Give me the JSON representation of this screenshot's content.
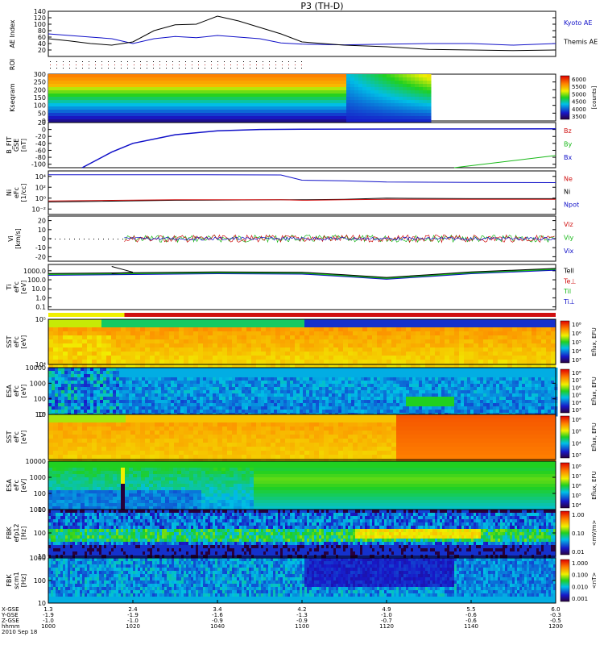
{
  "title": "P3 (TH-D)",
  "colors": {
    "blue": "#1010c8",
    "black": "#000000",
    "red": "#d01010",
    "green": "#18b818",
    "yellow": "#f0f000"
  },
  "panels": [
    {
      "key": "ae",
      "ylabel": [
        "AE Index"
      ],
      "ticks": [
        "140",
        "120",
        "100",
        "80",
        "60",
        "40",
        "20"
      ],
      "legend": [
        {
          "text": "Kyoto AE",
          "color": "blue"
        },
        {
          "text": "Themis AE",
          "color": "black"
        }
      ],
      "chart_data": {
        "type": "line",
        "ylim": [
          0,
          140
        ],
        "x": [
          1000,
          1005,
          1010,
          1015,
          1020,
          1025,
          1030,
          1035,
          1040,
          1045,
          1050,
          1055,
          1100,
          1110,
          1120,
          1130,
          1140,
          1150,
          1200
        ],
        "series": [
          {
            "name": "Kyoto AE",
            "values": [
              70,
              65,
              60,
              55,
              40,
              55,
              62,
              58,
              65,
              60,
              55,
              42,
              38,
              36,
              38,
              40,
              40,
              35,
              40
            ]
          },
          {
            "name": "Themis AE",
            "values": [
              55,
              48,
              40,
              35,
              45,
              80,
              98,
              100,
              125,
              110,
              90,
              70,
              45,
              35,
              30,
              22,
              20,
              18,
              20
            ]
          }
        ]
      }
    },
    {
      "key": "roi",
      "ylabel": [
        "ROI"
      ],
      "ticks": [],
      "legend": [],
      "chart_data": {
        "type": "scatter",
        "rows": 3,
        "x_end": 1100
      }
    },
    {
      "key": "kp",
      "ylabel": [
        "Kseqram"
      ],
      "ticks": [
        "300",
        "250",
        "200",
        "150",
        "100",
        "50",
        "0"
      ],
      "legend": [],
      "colorbar": {
        "labels": [
          "6000",
          "5500",
          "5000",
          "4500",
          "4000",
          "3500"
        ],
        "title": "[counts]"
      },
      "chart_data": {
        "type": "heatmap",
        "ylim": [
          0,
          300
        ],
        "zlim": [
          3500,
          6000
        ]
      }
    },
    {
      "key": "bfit",
      "ylabel": [
        "B_FIT",
        "GSE",
        "[nT]"
      ],
      "ticks": [
        "20",
        "0",
        "-20",
        "-40",
        "-60",
        "-80",
        "-100"
      ],
      "legend": [
        {
          "text": "Bz",
          "color": "red"
        },
        {
          "text": "By",
          "color": "green"
        },
        {
          "text": "Bx",
          "color": "blue"
        }
      ],
      "chart_data": {
        "type": "line",
        "ylim": [
          -110,
          20
        ],
        "x": [
          1008,
          1015,
          1020,
          1030,
          1040,
          1050,
          1100,
          1200
        ],
        "series": [
          {
            "name": "Bx",
            "values": [
              -110,
              -65,
              -40,
              -15,
              -4,
              0,
              1,
              2
            ]
          },
          {
            "name": "By",
            "values": [
              null,
              null,
              null,
              null,
              null,
              null,
              null,
              -75
            ]
          }
        ]
      }
    },
    {
      "key": "ni",
      "ylabel": [
        "Ni",
        "eFc",
        "[1/cc]"
      ],
      "ticks": [
        "10⁴",
        "10²",
        "10⁰",
        "10⁻²"
      ],
      "legend": [
        {
          "text": "Ne",
          "color": "red"
        },
        {
          "text": "Ni",
          "color": "black"
        },
        {
          "text": "Npot",
          "color": "blue"
        }
      ],
      "chart_data": {
        "type": "line",
        "yscale": "log",
        "x": [
          1000,
          1030,
          1055,
          1100,
          1110,
          1120,
          1140,
          1200
        ],
        "series": [
          {
            "name": "Npot",
            "values": [
              20000,
              20000,
              18000,
              2000,
              1500,
              900,
              800,
              700
            ]
          },
          {
            "name": "Ni",
            "values": [
              0.2,
              0.4,
              0.5,
              0.5,
              0.6,
              1.0,
              0.8,
              0.8
            ]
          },
          {
            "name": "Ne",
            "values": [
              0.3,
              0.5,
              0.5,
              0.4,
              0.5,
              0.6,
              0.6,
              0.6
            ]
          }
        ]
      }
    },
    {
      "key": "vi",
      "ylabel": [
        "Vi",
        "[km/s]"
      ],
      "ticks": [
        "20",
        "10",
        "0",
        "-10",
        "-20"
      ],
      "legend": [
        {
          "text": "Viz",
          "color": "red"
        },
        {
          "text": "Viy",
          "color": "green"
        },
        {
          "text": "Vix",
          "color": "blue"
        }
      ],
      "chart_data": {
        "type": "scatter",
        "ylim": [
          -25,
          25
        ],
        "start": 1018,
        "mean": 0
      }
    },
    {
      "key": "ti",
      "ylabel": [
        "Ti",
        "eFc",
        "[eV]"
      ],
      "ticks": [
        "1000.0",
        "100.0",
        "10.0",
        "1.0",
        "0.1"
      ],
      "legend": [
        {
          "text": "Tell",
          "color": "black"
        },
        {
          "text": "Te⊥",
          "color": "red"
        },
        {
          "text": "Til",
          "color": "green"
        },
        {
          "text": "Ti⊥",
          "color": "blue"
        }
      ],
      "chart_data": {
        "type": "line",
        "yscale": "log",
        "x": [
          1000,
          1020,
          1040,
          1100,
          1110,
          1120,
          1130,
          1140,
          1200
        ],
        "series": [
          {
            "name": "Ti",
            "values": [
              400,
              500,
              600,
              550,
              300,
              150,
              300,
              600,
              1500
            ]
          }
        ]
      }
    },
    {
      "key": "sst1",
      "ylabel": [
        "SST",
        "eFc",
        "[eV]"
      ],
      "ticks": [
        "10⁵",
        "10⁴"
      ],
      "legend": [],
      "colorbar": {
        "labels": [
          "10⁸",
          "10⁶",
          "10⁵",
          "10⁴",
          "10³"
        ],
        "title": "Eflux, EFU"
      },
      "chart_data": {
        "type": "heatmap",
        "zlim": [
          1000,
          100000000
        ]
      }
    },
    {
      "key": "esa1",
      "ylabel": [
        "ESA",
        "eFc",
        "[eV]"
      ],
      "ticks": [
        "10000",
        "1000",
        "100",
        "10"
      ],
      "legend": [],
      "colorbar": {
        "labels": [
          "10⁸",
          "10⁷",
          "10⁶",
          "10⁵",
          "10⁴",
          "10³"
        ],
        "title": "Eflux, EFU"
      },
      "chart_data": {
        "type": "heatmap",
        "zlim": [
          1000,
          100000000
        ]
      }
    },
    {
      "key": "sst2",
      "ylabel": [
        "SST",
        "eFc",
        "[eV]"
      ],
      "ticks": [
        "10⁵"
      ],
      "legend": [],
      "colorbar": {
        "labels": [
          "10⁶",
          "10⁵",
          "10⁴",
          "10³"
        ],
        "title": "Eflux, EFU"
      },
      "chart_data": {
        "type": "heatmap",
        "zlim": [
          1000,
          1000000
        ]
      }
    },
    {
      "key": "esa2",
      "ylabel": [
        "ESA",
        "eFc",
        "[eV]"
      ],
      "ticks": [
        "10000",
        "1000",
        "100",
        "10"
      ],
      "legend": [],
      "colorbar": {
        "labels": [
          "10⁸",
          "10⁷",
          "10⁶",
          "10⁵",
          "10⁴"
        ],
        "title": "Eflux, EFU"
      },
      "chart_data": {
        "type": "heatmap",
        "zlim": [
          10000,
          100000000
        ]
      }
    },
    {
      "key": "fbk1",
      "ylabel": [
        "FBK",
        "efp12",
        "[Hz]"
      ],
      "ticks": [
        "1000",
        "100",
        "10"
      ],
      "legend": [],
      "colorbar": {
        "labels": [
          "1.00",
          "0.10",
          "0.01"
        ],
        "title": "<mV/m>"
      },
      "chart_data": {
        "type": "heatmap",
        "zlim": [
          0.01,
          1.0
        ]
      }
    },
    {
      "key": "fbk2",
      "ylabel": [
        "FBK",
        "scm1",
        "[Hz]"
      ],
      "ticks": [
        "1000",
        "100",
        "10"
      ],
      "legend": [],
      "colorbar": {
        "labels": [
          "1.000",
          "0.100",
          "0.010",
          "0.001"
        ],
        "title": "<nT>"
      },
      "chart_data": {
        "type": "heatmap",
        "zlim": [
          0.001,
          1.0
        ]
      }
    }
  ],
  "xaxis": {
    "row_labels": [
      "X-GSE",
      "Y-GSE",
      "Z-GSE",
      "hhmm",
      "2010 Sep 18"
    ],
    "columns": [
      {
        "x": "1.3",
        "y": "-1.9",
        "z": "-1.0",
        "t": "1000"
      },
      {
        "x": "2.4",
        "y": "-1.9",
        "z": "-1.0",
        "t": "1020"
      },
      {
        "x": "3.4",
        "y": "-1.6",
        "z": "-0.9",
        "t": "1040"
      },
      {
        "x": "4.2",
        "y": "-1.3",
        "z": "-0.9",
        "t": "1100"
      },
      {
        "x": "4.9",
        "y": "-1.0",
        "z": "-0.7",
        "t": "1120"
      },
      {
        "x": "5.5",
        "y": "-0.6",
        "z": "-0.6",
        "t": "1140"
      },
      {
        "x": "6.0",
        "y": "-0.3",
        "z": "-0.5",
        "t": "1200"
      }
    ]
  }
}
